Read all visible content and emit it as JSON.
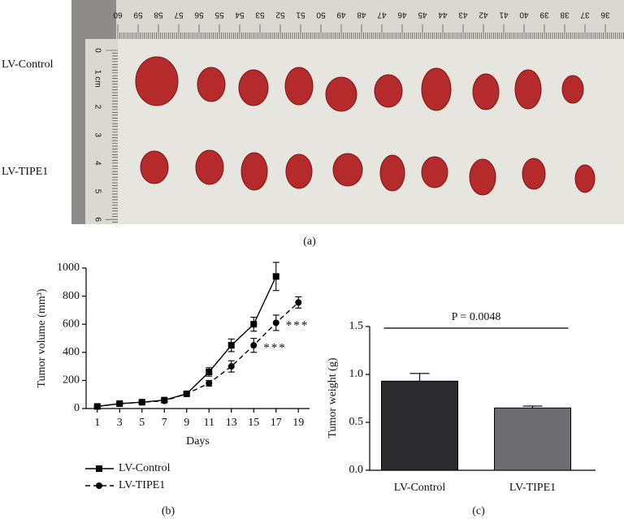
{
  "photo": {
    "row_labels": [
      "LV-Control",
      "LV-TIPE1"
    ],
    "ruler_top": [
      "60",
      "59",
      "58",
      "57",
      "56",
      "55",
      "54",
      "53",
      "52",
      "51",
      "50",
      "49",
      "48",
      "47",
      "46",
      "45",
      "44",
      "43",
      "42",
      "41",
      "40",
      "39",
      "38",
      "37",
      "36"
    ],
    "ruler_left": [
      "0",
      "1 cm",
      "2",
      "3",
      "4",
      "5",
      "6"
    ],
    "caption": "(a)"
  },
  "chart_data": [
    {
      "type": "line",
      "caption": "(b)",
      "xlabel": "Days",
      "ylabel": "Tumor volume (mm³)",
      "x": [
        1,
        3,
        5,
        7,
        9,
        11,
        13,
        15,
        17,
        19
      ],
      "xlim": [
        0,
        20
      ],
      "xticks": [
        1,
        3,
        5,
        7,
        9,
        11,
        13,
        15,
        17,
        19
      ],
      "ylim": [
        0,
        1000
      ],
      "yticks": [
        0,
        200,
        400,
        600,
        800,
        1000
      ],
      "series": [
        {
          "name": "LV-Control",
          "color": "#000000",
          "marker": "square",
          "line_style": "solid",
          "values": [
            15,
            35,
            45,
            60,
            105,
            260,
            450,
            600,
            940,
            null
          ],
          "errors": [
            5,
            8,
            8,
            10,
            12,
            30,
            45,
            50,
            100,
            null
          ]
        },
        {
          "name": "LV-TIPE1",
          "color": "#000000",
          "marker": "circle",
          "line_style": "dashed",
          "values": [
            15,
            35,
            45,
            55,
            105,
            180,
            300,
            450,
            610,
            755
          ],
          "errors": [
            5,
            8,
            8,
            10,
            12,
            20,
            40,
            50,
            55,
            40
          ]
        }
      ],
      "annotations": [
        "***",
        "***"
      ],
      "legend": "bottom"
    },
    {
      "type": "bar",
      "caption": "(c)",
      "ylabel": "Tumor weight (g)",
      "categories": [
        "LV-Control",
        "LV-TIPE1"
      ],
      "values": [
        0.93,
        0.65
      ],
      "errors": [
        0.08,
        0.02
      ],
      "colors": [
        "#2b2b2d",
        "#6e6e72"
      ],
      "ylim": [
        0,
        1.5
      ],
      "yticks": [
        {
          "value": 0,
          "label": "0.0"
        },
        0.5,
        {
          "value": 1,
          "label": "1.0"
        },
        1.5
      ],
      "annotation": "P = 0.0048"
    }
  ]
}
